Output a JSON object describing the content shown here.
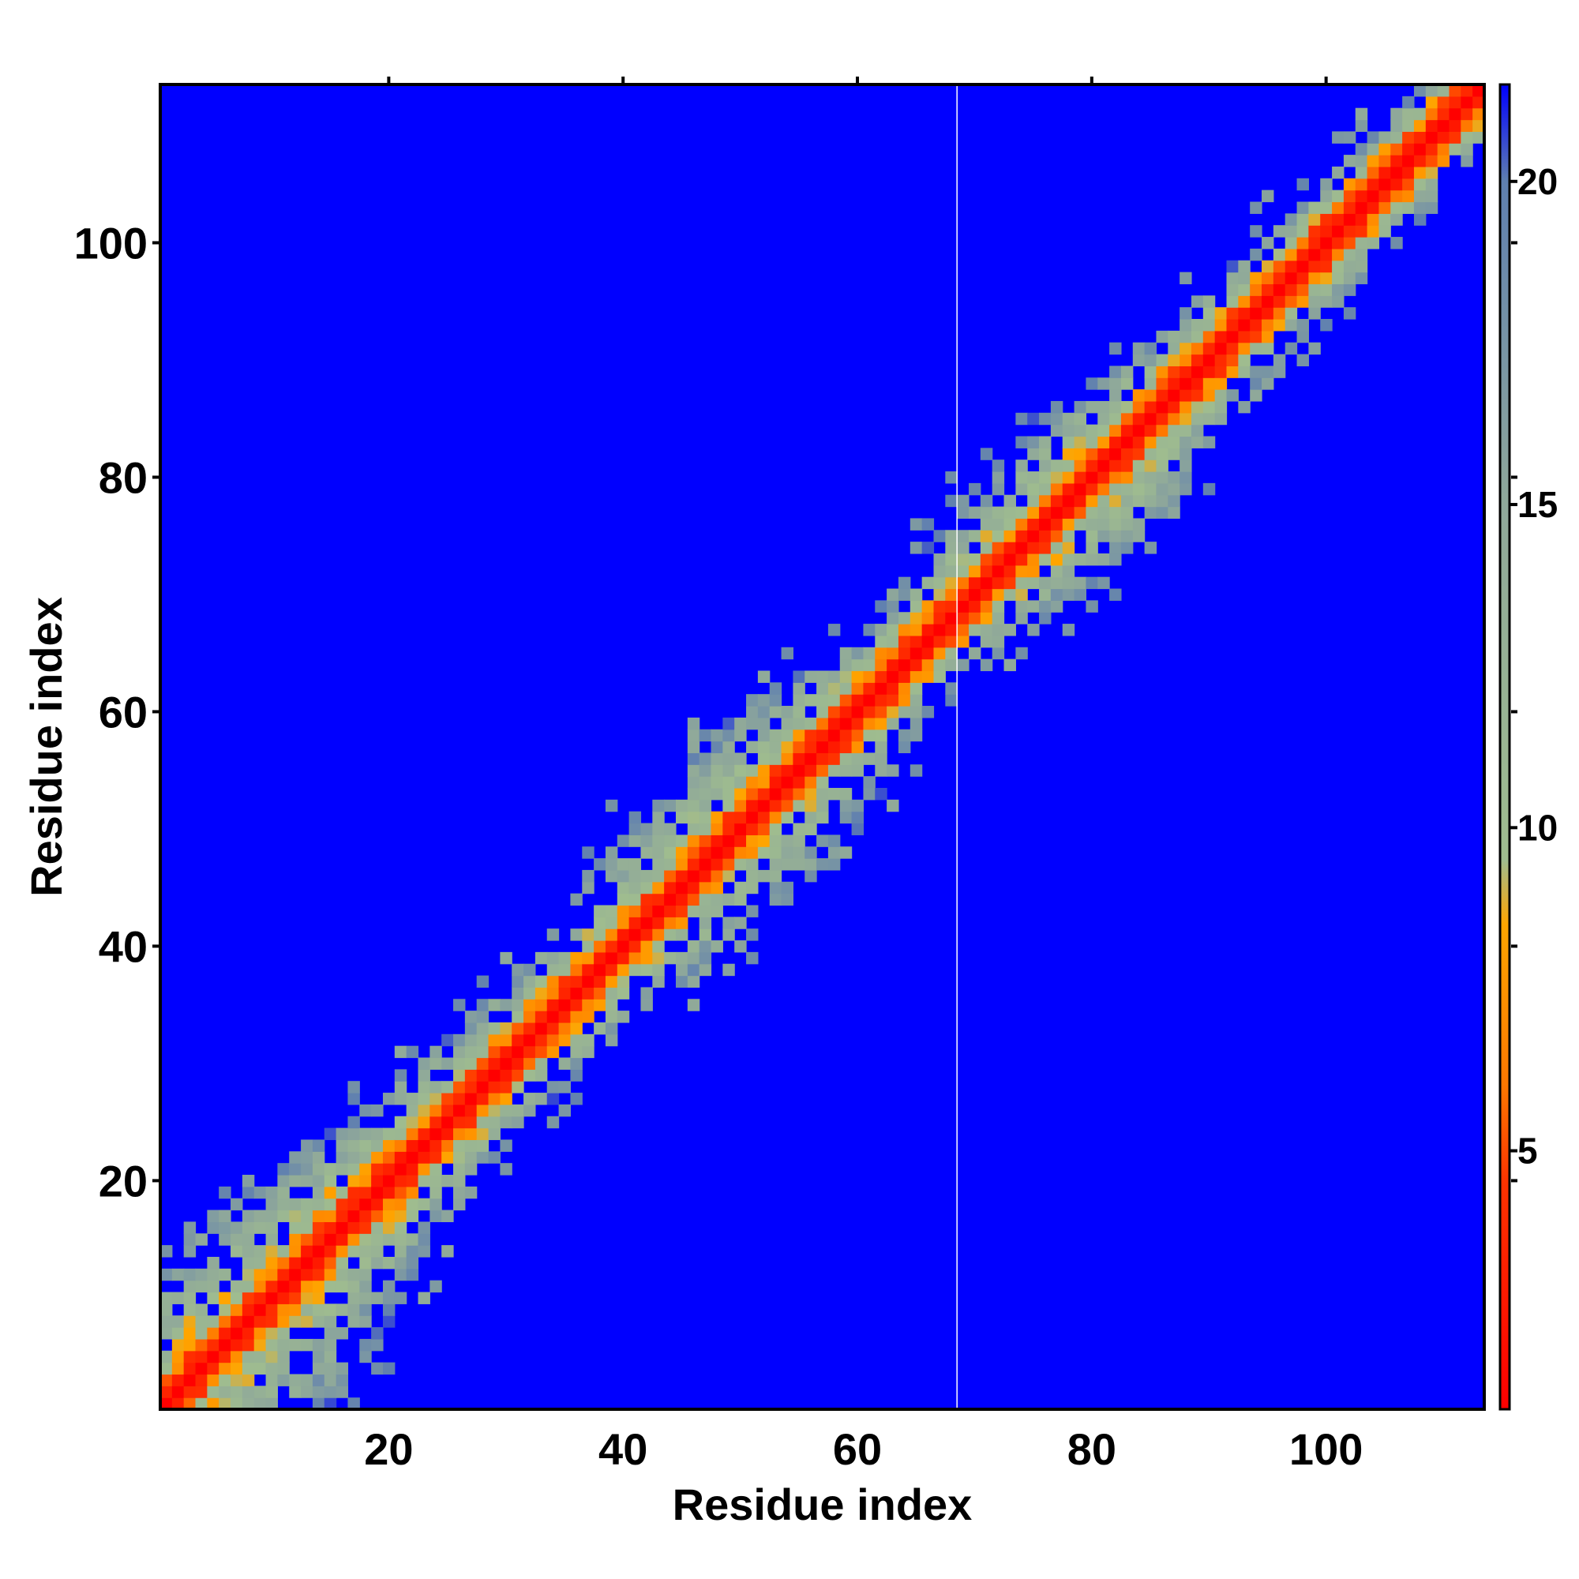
{
  "chart_data": {
    "type": "heatmap",
    "title": "",
    "xlabel": "Residue index",
    "ylabel": "Residue index",
    "xlim": [
      1,
      113
    ],
    "ylim": [
      1,
      113
    ],
    "x_ticks": [
      20,
      40,
      60,
      80,
      100
    ],
    "y_ticks": [
      20,
      40,
      60,
      80,
      100
    ],
    "colorbar": {
      "ticks": [
        5,
        10,
        15,
        20
      ],
      "range": [
        1,
        21.5
      ],
      "position": "right",
      "stops": [
        {
          "value": 1,
          "color": "#ff0000"
        },
        {
          "value": 4.5,
          "color": "#ff3300"
        },
        {
          "value": 6,
          "color": "#ff7700"
        },
        {
          "value": 8.5,
          "color": "#ffa500"
        },
        {
          "value": 9.5,
          "color": "#9fbc8f"
        },
        {
          "value": 15,
          "color": "#8fa89a"
        },
        {
          "value": 20,
          "color": "#5f7fb0"
        },
        {
          "value": 21.5,
          "color": "#0000ff"
        }
      ]
    },
    "background_value_color": "#0000ff",
    "grid": false,
    "description_of_values": "Symmetric-like distance-style map: value ~1 along the diagonal (x equals y), rising to ~5-9 within about 2-3 residues of the diagonal, ~10-18 in a broader band out to ~6-15 residues, and saturated (>21) elsewhere. Band is broadest at residues 1-30, 40-62 and 68-90.",
    "band_profile": [
      {
        "residue": 1,
        "halfwidth": 14
      },
      {
        "residue": 10,
        "halfwidth": 14
      },
      {
        "residue": 20,
        "halfwidth": 9
      },
      {
        "residue": 30,
        "halfwidth": 7
      },
      {
        "residue": 40,
        "halfwidth": 8
      },
      {
        "residue": 48,
        "halfwidth": 11
      },
      {
        "residue": 56,
        "halfwidth": 10
      },
      {
        "residue": 64,
        "halfwidth": 6
      },
      {
        "residue": 72,
        "halfwidth": 9
      },
      {
        "residue": 80,
        "halfwidth": 10
      },
      {
        "residue": 90,
        "halfwidth": 6
      },
      {
        "residue": 100,
        "halfwidth": 6
      },
      {
        "residue": 113,
        "halfwidth": 5
      }
    ]
  }
}
